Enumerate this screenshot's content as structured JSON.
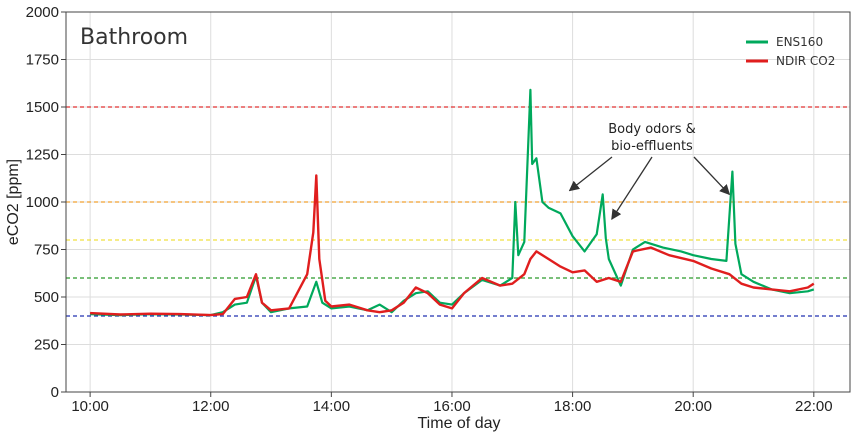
{
  "chart_data": {
    "type": "line",
    "title": "Bathroom",
    "xlabel": "Time of day",
    "ylabel": "eCO2 [ppm]",
    "xlim": [
      9.6,
      22.6
    ],
    "ylim": [
      0,
      2000
    ],
    "xticks": [
      10,
      12,
      14,
      16,
      18,
      20,
      22
    ],
    "xtick_labels": [
      "10:00",
      "12:00",
      "14:00",
      "16:00",
      "18:00",
      "20:00",
      "22:00"
    ],
    "yticks": [
      0,
      250,
      500,
      750,
      1000,
      1250,
      1500,
      1750,
      2000
    ],
    "ytick_labels": [
      "0",
      "250",
      "500",
      "750",
      "1000",
      "1250",
      "1500",
      "1750",
      "2000"
    ],
    "grid": true,
    "legend_position": "top-right",
    "reference_lines": [
      {
        "y": 1500,
        "color": "#e03030"
      },
      {
        "y": 1000,
        "color": "#f0a030"
      },
      {
        "y": 800,
        "color": "#f0e040"
      },
      {
        "y": 600,
        "color": "#2a9a2a"
      },
      {
        "y": 400,
        "color": "#2030b0"
      }
    ],
    "series": [
      {
        "name": "ENS160",
        "color": "#00a95c",
        "x": [
          10.0,
          10.5,
          11.0,
          11.5,
          12.0,
          12.2,
          12.4,
          12.6,
          12.75,
          12.85,
          13.0,
          13.3,
          13.6,
          13.75,
          13.85,
          14.0,
          14.3,
          14.6,
          14.8,
          15.0,
          15.2,
          15.4,
          15.6,
          15.8,
          16.0,
          16.2,
          16.5,
          16.8,
          17.0,
          17.05,
          17.1,
          17.2,
          17.3,
          17.33,
          17.4,
          17.5,
          17.6,
          17.8,
          18.0,
          18.2,
          18.4,
          18.5,
          18.55,
          18.6,
          18.8,
          19.0,
          19.2,
          19.5,
          19.8,
          20.0,
          20.3,
          20.55,
          20.65,
          20.7,
          20.8,
          21.0,
          21.3,
          21.6,
          21.9,
          22.0
        ],
        "y": [
          410,
          405,
          410,
          408,
          405,
          420,
          460,
          470,
          610,
          470,
          420,
          440,
          450,
          580,
          470,
          440,
          450,
          430,
          460,
          420,
          480,
          520,
          530,
          470,
          460,
          520,
          590,
          560,
          600,
          1000,
          720,
          790,
          1590,
          1200,
          1230,
          1000,
          970,
          940,
          820,
          740,
          830,
          1040,
          810,
          700,
          560,
          750,
          790,
          760,
          740,
          720,
          700,
          690,
          1160,
          780,
          620,
          580,
          540,
          520,
          530,
          540
        ]
      },
      {
        "name": "NDIR CO2",
        "color": "#e01e1e",
        "x": [
          10.0,
          10.5,
          11.0,
          11.5,
          12.0,
          12.2,
          12.4,
          12.6,
          12.75,
          12.85,
          13.0,
          13.3,
          13.6,
          13.7,
          13.75,
          13.8,
          13.9,
          14.0,
          14.3,
          14.6,
          14.8,
          15.0,
          15.2,
          15.4,
          15.6,
          15.8,
          16.0,
          16.2,
          16.5,
          16.8,
          17.0,
          17.2,
          17.3,
          17.4,
          17.6,
          17.8,
          18.0,
          18.2,
          18.4,
          18.6,
          18.8,
          19.0,
          19.3,
          19.6,
          20.0,
          20.3,
          20.6,
          20.8,
          21.0,
          21.3,
          21.6,
          21.9,
          22.0
        ],
        "y": [
          415,
          408,
          412,
          410,
          405,
          410,
          490,
          500,
          620,
          470,
          430,
          440,
          620,
          840,
          1140,
          700,
          480,
          450,
          460,
          430,
          420,
          430,
          470,
          550,
          520,
          460,
          440,
          520,
          600,
          560,
          570,
          620,
          700,
          740,
          700,
          660,
          630,
          640,
          580,
          600,
          580,
          740,
          760,
          720,
          690,
          650,
          620,
          570,
          550,
          540,
          530,
          550,
          570
        ]
      }
    ],
    "annotations": [
      {
        "text": [
          "Body odors &",
          "bio-effluents"
        ],
        "arrows_to": [
          [
            17.95,
            1060
          ],
          [
            18.65,
            910
          ],
          [
            20.6,
            1040
          ]
        ]
      }
    ]
  }
}
